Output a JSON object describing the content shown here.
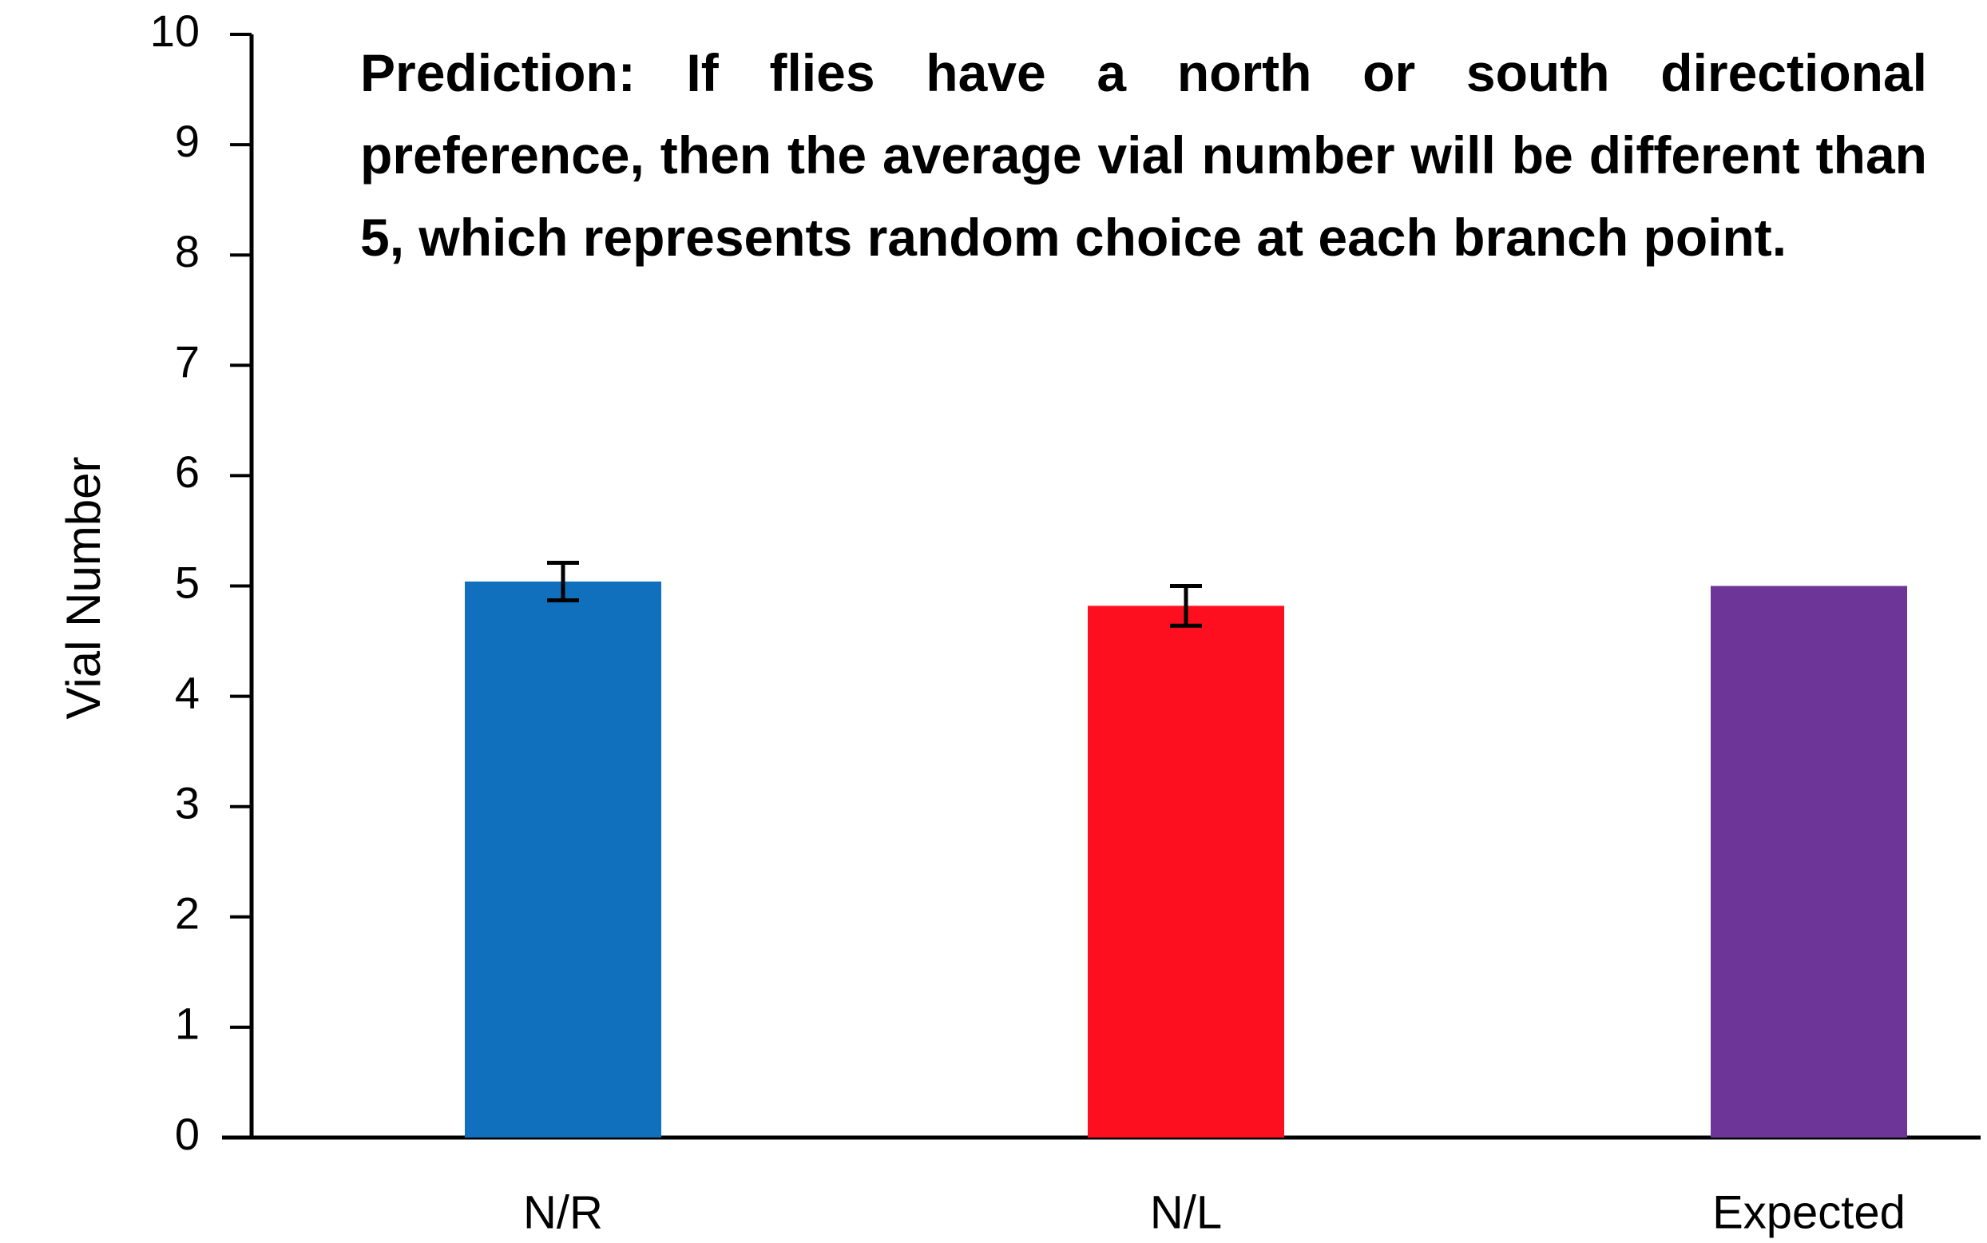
{
  "chart_data": {
    "type": "bar",
    "annotation": "Prediction: If flies have a north or south directional preference, then the average vial number will be different than 5, which represents random choice at each branch point.",
    "y_label": "Vial Number",
    "categories": [
      "N/R",
      "N/L",
      "Expected"
    ],
    "values": [
      5.04,
      4.82,
      5.0
    ],
    "errors": [
      0.17,
      0.18,
      null
    ],
    "colors": [
      "#1170bd",
      "#fe0f1f",
      "#6e3598"
    ],
    "ylim": [
      0,
      10
    ],
    "yticks": [
      0,
      1,
      2,
      3,
      4,
      5,
      6,
      7,
      8,
      9,
      10
    ],
    "grid": false
  }
}
